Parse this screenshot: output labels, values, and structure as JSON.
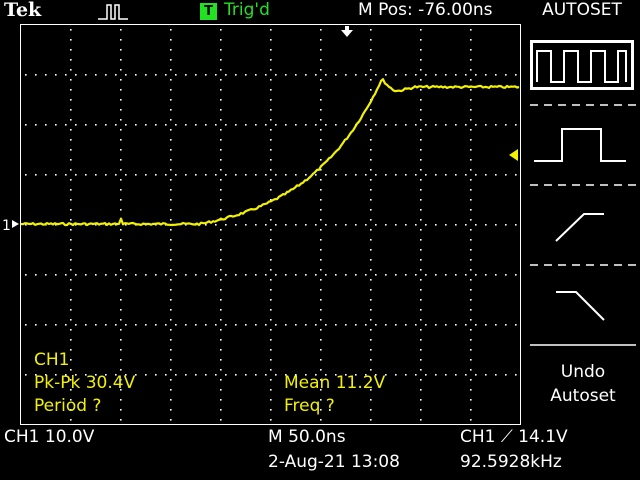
{
  "header": {
    "brand": "Tek",
    "acquisition_icon": "pulse-icon",
    "trigger_badge": "T",
    "trigger_status": "Trig'd",
    "horizontal_position": "M Pos: -76.00ns"
  },
  "side_menu": {
    "title": "AUTOSET",
    "options": [
      {
        "icon": "multi-cycle-square-wave-icon",
        "selected": true
      },
      {
        "icon": "single-cycle-pulse-icon",
        "selected": false
      },
      {
        "icon": "rising-edge-icon",
        "selected": false
      },
      {
        "icon": "falling-edge-icon",
        "selected": false
      }
    ],
    "undo_line1": "Undo",
    "undo_line2": "Autoset"
  },
  "measurements": {
    "channel": "CH1",
    "pk_pk": "Pk-Pk 30.4V",
    "period": "Period ?",
    "mean": "Mean 11.2V",
    "freq": "Freq ?"
  },
  "status_bar": {
    "ch1_scale": "CH1  10.0V",
    "timebase": "M 50.0ns",
    "date_time": "2-Aug-21 13:08",
    "trigger": "CH1 ⟋ 14.1V",
    "frequency": "92.5928kHz"
  },
  "channel_marker": "1",
  "colors": {
    "trace": "#f2f200",
    "graticule": "#ffffff",
    "trigger_status": "#22e022",
    "background": "#000000"
  }
}
